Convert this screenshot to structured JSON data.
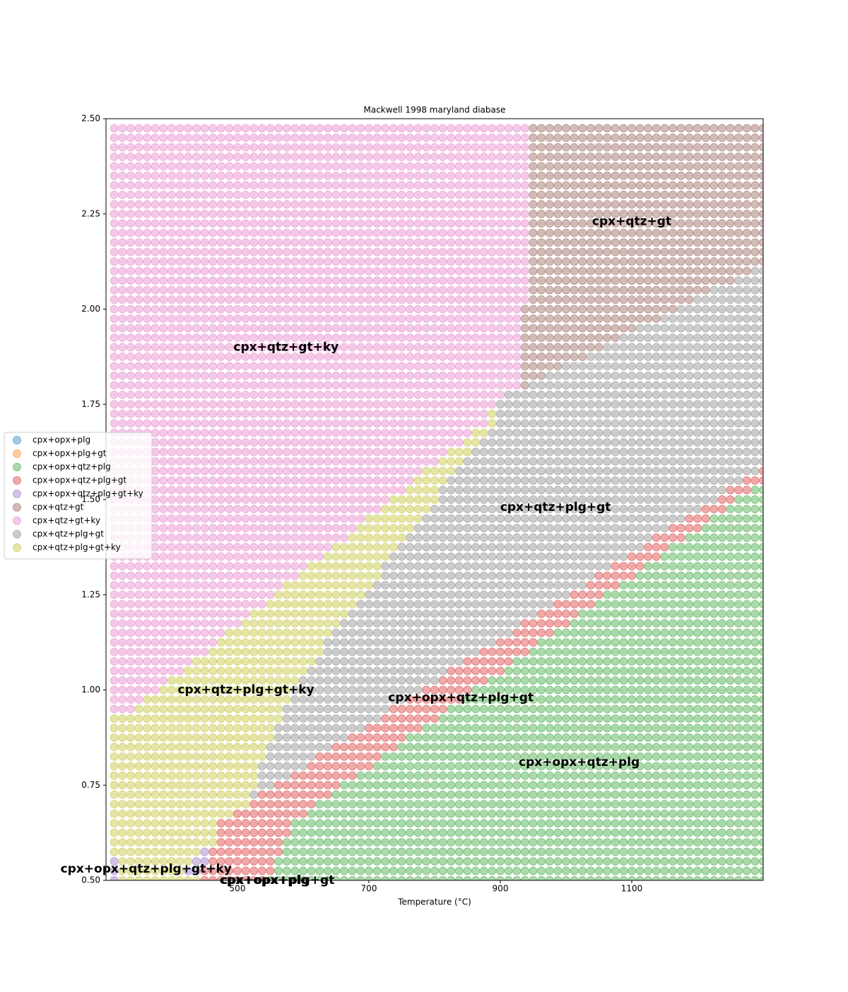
{
  "chart_data": {
    "type": "scatter",
    "title": "Mackwell 1998 maryland diabase",
    "xlabel": "Temperature (°C)",
    "xlim": [
      300,
      1300
    ],
    "ylim": [
      0.5,
      2.5
    ],
    "xticks": [
      500,
      700,
      900,
      1100
    ],
    "yticks": [
      {
        "value": 0.5,
        "label": "0.50"
      },
      {
        "value": 0.75,
        "label": "0.75"
      },
      {
        "value": 1,
        "label": "1.00"
      },
      {
        "value": 1.25,
        "label": "1.25"
      },
      {
        "value": 1.5,
        "label": "1.50"
      },
      {
        "value": 1.75,
        "label": "1.75"
      },
      {
        "value": 2,
        "label": "2.00"
      },
      {
        "value": 2.25,
        "label": "2.25"
      },
      {
        "value": 2.5,
        "label": "2.50"
      }
    ],
    "grid": false,
    "legend": "left",
    "series": [
      {
        "name": "cpx+opx+plg",
        "color": "#1f77b4"
      },
      {
        "name": "cpx+opx+plg+gt",
        "color": "#ff7f0e"
      },
      {
        "name": "cpx+opx+qtz+plg",
        "color": "#2ca02c"
      },
      {
        "name": "cpx+opx+qtz+plg+gt",
        "color": "#d62728"
      },
      {
        "name": "cpx+opx+qtz+plg+gt+ky",
        "color": "#9467bd"
      },
      {
        "name": "cpx+qtz+gt",
        "color": "#8c564b"
      },
      {
        "name": "cpx+qtz+gt+ky",
        "color": "#e377c2"
      },
      {
        "name": "cpx+qtz+plg+gt",
        "color": "#7f7f7f"
      },
      {
        "name": "cpx+qtz+plg+gt+ky",
        "color": "#bcbd22"
      }
    ],
    "x": [
      312.5,
      325,
      337.5,
      350,
      362.5,
      375,
      387.5,
      400,
      412.5,
      425,
      437.5,
      450,
      462.5,
      475,
      487.5,
      500,
      512.5,
      525,
      537.5,
      550,
      562.5,
      575,
      587.5,
      600,
      612.5,
      625,
      637.5,
      650,
      662.5,
      675,
      687.5,
      700,
      712.5,
      725,
      737.5,
      750,
      762.5,
      775,
      787.5,
      800,
      812.5,
      825,
      837.5,
      850,
      862.5,
      875,
      887.5,
      900,
      912.5,
      925,
      937.5,
      950,
      962.5,
      975,
      987.5,
      1000,
      1012.5,
      1025,
      1037.5,
      1050,
      1062.5,
      1075,
      1087.5,
      1100,
      1112.5,
      1125,
      1137.5,
      1150,
      1162.5,
      1175,
      1187.5,
      1200,
      1212.5,
      1225,
      1237.5,
      1250,
      1262.5,
      1275,
      1287.5,
      1300
    ],
    "y": [
      0.5,
      0.525,
      0.55,
      0.575,
      0.6,
      0.625,
      0.65,
      0.675,
      0.7,
      0.725,
      0.75,
      0.775,
      0.8,
      0.825,
      0.85,
      0.875,
      0.9,
      0.925,
      0.95,
      0.975,
      1,
      1.025,
      1.05,
      1.075,
      1.1,
      1.125,
      1.15,
      1.175,
      1.2,
      1.225,
      1.25,
      1.275,
      1.3,
      1.325,
      1.35,
      1.375,
      1.4,
      1.425,
      1.45,
      1.475,
      1.5,
      1.525,
      1.55,
      1.575,
      1.6,
      1.625,
      1.65,
      1.675,
      1.7,
      1.725,
      1.75,
      1.775,
      1.8,
      1.825,
      1.85,
      1.875,
      1.9,
      1.925,
      1.95,
      1.975,
      2,
      2.025,
      2.05,
      2.075,
      2.1,
      2.125,
      2.15,
      2.175,
      2.2,
      2.225,
      2.25,
      2.275,
      2.3,
      2.325,
      2.35,
      2.375,
      2.4,
      2.425,
      2.45,
      2.475
    ],
    "grid_runs": [
      [
        [
          4,
          1
        ],
        [
          8,
          10
        ],
        [
          3,
          8
        ],
        [
          2,
          61
        ]
      ],
      [
        [
          4,
          1
        ],
        [
          8,
          8
        ],
        [
          4,
          2
        ],
        [
          3,
          9
        ],
        [
          2,
          60
        ]
      ],
      [
        [
          4,
          1
        ],
        [
          8,
          9
        ],
        [
          4,
          2
        ],
        [
          3,
          8
        ],
        [
          2,
          60
        ]
      ],
      [
        [
          8,
          11
        ],
        [
          4,
          1
        ],
        [
          3,
          9
        ],
        [
          2,
          59
        ]
      ],
      [
        [
          8,
          13
        ],
        [
          3,
          8
        ],
        [
          2,
          59
        ]
      ],
      [
        [
          8,
          13
        ],
        [
          3,
          9
        ],
        [
          2,
          58
        ]
      ],
      [
        [
          8,
          13
        ],
        [
          3,
          9
        ],
        [
          2,
          58
        ]
      ],
      [
        [
          8,
          15
        ],
        [
          3,
          9
        ],
        [
          2,
          56
        ]
      ],
      [
        [
          8,
          17
        ],
        [
          3,
          8
        ],
        [
          2,
          55
        ]
      ],
      [
        [
          8,
          17
        ],
        [
          7,
          1
        ],
        [
          3,
          9
        ],
        [
          2,
          53
        ]
      ],
      [
        [
          8,
          18
        ],
        [
          7,
          2
        ],
        [
          3,
          8
        ],
        [
          2,
          52
        ]
      ],
      [
        [
          8,
          18
        ],
        [
          7,
          4
        ],
        [
          3,
          8
        ],
        [
          2,
          50
        ]
      ],
      [
        [
          8,
          18
        ],
        [
          7,
          6
        ],
        [
          3,
          8
        ],
        [
          2,
          48
        ]
      ],
      [
        [
          8,
          19
        ],
        [
          7,
          6
        ],
        [
          3,
          8
        ],
        [
          2,
          47
        ]
      ],
      [
        [
          8,
          19
        ],
        [
          7,
          8
        ],
        [
          3,
          8
        ],
        [
          2,
          45
        ]
      ],
      [
        [
          8,
          20
        ],
        [
          7,
          9
        ],
        [
          3,
          7
        ],
        [
          2,
          44
        ]
      ],
      [
        [
          8,
          20
        ],
        [
          7,
          11
        ],
        [
          3,
          7
        ],
        [
          2,
          42
        ]
      ],
      [
        [
          8,
          21
        ],
        [
          7,
          12
        ],
        [
          3,
          7
        ],
        [
          2,
          40
        ]
      ],
      [
        [
          6,
          3
        ],
        [
          8,
          18
        ],
        [
          7,
          13
        ],
        [
          3,
          7
        ],
        [
          2,
          39
        ]
      ],
      [
        [
          6,
          4
        ],
        [
          8,
          18
        ],
        [
          7,
          14
        ],
        [
          3,
          7
        ],
        [
          2,
          37
        ]
      ],
      [
        [
          6,
          6
        ],
        [
          8,
          16
        ],
        [
          7,
          16
        ],
        [
          3,
          6
        ],
        [
          2,
          36
        ]
      ],
      [
        [
          6,
          7
        ],
        [
          8,
          16
        ],
        [
          7,
          17
        ],
        [
          3,
          6
        ],
        [
          2,
          34
        ]
      ],
      [
        [
          6,
          9
        ],
        [
          8,
          15
        ],
        [
          7,
          17
        ],
        [
          3,
          7
        ],
        [
          2,
          32
        ]
      ],
      [
        [
          6,
          10
        ],
        [
          8,
          15
        ],
        [
          7,
          18
        ],
        [
          3,
          6
        ],
        [
          2,
          31
        ]
      ],
      [
        [
          6,
          12
        ],
        [
          8,
          14
        ],
        [
          7,
          19
        ],
        [
          3,
          6
        ],
        [
          2,
          29
        ]
      ],
      [
        [
          6,
          13
        ],
        [
          8,
          13
        ],
        [
          7,
          21
        ],
        [
          3,
          5
        ],
        [
          2,
          28
        ]
      ],
      [
        [
          6,
          14
        ],
        [
          8,
          13
        ],
        [
          7,
          22
        ],
        [
          3,
          5
        ],
        [
          2,
          26
        ]
      ],
      [
        [
          6,
          16
        ],
        [
          8,
          12
        ],
        [
          7,
          22
        ],
        [
          3,
          6
        ],
        [
          2,
          24
        ]
      ],
      [
        [
          6,
          17
        ],
        [
          8,
          12
        ],
        [
          7,
          23
        ],
        [
          3,
          5
        ],
        [
          2,
          23
        ]
      ],
      [
        [
          6,
          19
        ],
        [
          8,
          11
        ],
        [
          7,
          24
        ],
        [
          3,
          5
        ],
        [
          2,
          21
        ]
      ],
      [
        [
          6,
          20
        ],
        [
          8,
          11
        ],
        [
          7,
          25
        ],
        [
          3,
          4
        ],
        [
          2,
          20
        ]
      ],
      [
        [
          6,
          21
        ],
        [
          8,
          11
        ],
        [
          7,
          26
        ],
        [
          3,
          4
        ],
        [
          2,
          18
        ]
      ],
      [
        [
          6,
          23
        ],
        [
          8,
          10
        ],
        [
          7,
          26
        ],
        [
          3,
          5
        ],
        [
          2,
          16
        ]
      ],
      [
        [
          6,
          24
        ],
        [
          8,
          9
        ],
        [
          7,
          28
        ],
        [
          3,
          4
        ],
        [
          2,
          15
        ]
      ],
      [
        [
          6,
          26
        ],
        [
          8,
          8
        ],
        [
          7,
          29
        ],
        [
          3,
          4
        ],
        [
          2,
          13
        ]
      ],
      [
        [
          6,
          27
        ],
        [
          8,
          8
        ],
        [
          7,
          30
        ],
        [
          3,
          3
        ],
        [
          2,
          12
        ]
      ],
      [
        [
          6,
          29
        ],
        [
          8,
          7
        ],
        [
          7,
          30
        ],
        [
          3,
          4
        ],
        [
          2,
          10
        ]
      ],
      [
        [
          6,
          30
        ],
        [
          8,
          7
        ],
        [
          7,
          31
        ],
        [
          3,
          4
        ],
        [
          2,
          8
        ]
      ],
      [
        [
          6,
          31
        ],
        [
          8,
          7
        ],
        [
          7,
          32
        ],
        [
          3,
          3
        ],
        [
          2,
          7
        ]
      ],
      [
        [
          6,
          33
        ],
        [
          8,
          6
        ],
        [
          7,
          33
        ],
        [
          3,
          3
        ],
        [
          2,
          5
        ]
      ],
      [
        [
          6,
          34
        ],
        [
          8,
          6
        ],
        [
          7,
          34
        ],
        [
          3,
          2
        ],
        [
          2,
          4
        ]
      ],
      [
        [
          6,
          36
        ],
        [
          8,
          4
        ],
        [
          7,
          35
        ],
        [
          3,
          3
        ],
        [
          2,
          2
        ]
      ],
      [
        [
          6,
          37
        ],
        [
          8,
          4
        ],
        [
          7,
          36
        ],
        [
          3,
          3
        ]
      ],
      [
        [
          6,
          38
        ],
        [
          8,
          4
        ],
        [
          7,
          37
        ],
        [
          3,
          1
        ]
      ],
      [
        [
          6,
          40
        ],
        [
          8,
          3
        ],
        [
          7,
          37
        ]
      ],
      [
        [
          6,
          41
        ],
        [
          8,
          3
        ],
        [
          7,
          36
        ]
      ],
      [
        [
          6,
          43
        ],
        [
          8,
          2
        ],
        [
          7,
          35
        ]
      ],
      [
        [
          6,
          44
        ],
        [
          8,
          2
        ],
        [
          7,
          34
        ]
      ],
      [
        [
          6,
          46
        ],
        [
          8,
          1
        ],
        [
          7,
          33
        ]
      ],
      [
        [
          6,
          46
        ],
        [
          8,
          1
        ],
        [
          7,
          33
        ]
      ],
      [
        [
          6,
          47
        ],
        [
          7,
          33
        ]
      ],
      [
        [
          6,
          48
        ],
        [
          7,
          32
        ]
      ],
      [
        [
          6,
          50
        ],
        [
          5,
          1
        ],
        [
          7,
          29
        ]
      ],
      [
        [
          6,
          50
        ],
        [
          5,
          3
        ],
        [
          7,
          27
        ]
      ],
      [
        [
          6,
          50
        ],
        [
          5,
          5
        ],
        [
          7,
          25
        ]
      ],
      [
        [
          6,
          50
        ],
        [
          5,
          8
        ],
        [
          7,
          22
        ]
      ],
      [
        [
          6,
          50
        ],
        [
          5,
          10
        ],
        [
          7,
          20
        ]
      ],
      [
        [
          6,
          50
        ],
        [
          5,
          12
        ],
        [
          7,
          18
        ]
      ],
      [
        [
          6,
          50
        ],
        [
          5,
          14
        ],
        [
          7,
          16
        ]
      ],
      [
        [
          6,
          50
        ],
        [
          5,
          17
        ],
        [
          7,
          13
        ]
      ],
      [
        [
          6,
          50
        ],
        [
          5,
          19
        ],
        [
          7,
          11
        ]
      ],
      [
        [
          6,
          51
        ],
        [
          5,
          20
        ],
        [
          7,
          9
        ]
      ],
      [
        [
          6,
          51
        ],
        [
          5,
          22
        ],
        [
          7,
          7
        ]
      ],
      [
        [
          6,
          51
        ],
        [
          5,
          25
        ],
        [
          7,
          4
        ]
      ],
      [
        [
          6,
          51
        ],
        [
          5,
          27
        ],
        [
          7,
          2
        ]
      ],
      [
        [
          6,
          51
        ],
        [
          5,
          29
        ]
      ],
      [
        [
          6,
          51
        ],
        [
          5,
          29
        ]
      ],
      [
        [
          6,
          51
        ],
        [
          5,
          29
        ]
      ],
      [
        [
          6,
          51
        ],
        [
          5,
          29
        ]
      ],
      [
        [
          6,
          51
        ],
        [
          5,
          29
        ]
      ],
      [
        [
          6,
          51
        ],
        [
          5,
          29
        ]
      ],
      [
        [
          6,
          51
        ],
        [
          5,
          29
        ]
      ],
      [
        [
          6,
          51
        ],
        [
          5,
          29
        ]
      ],
      [
        [
          6,
          51
        ],
        [
          5,
          29
        ]
      ],
      [
        [
          6,
          51
        ],
        [
          5,
          29
        ]
      ],
      [
        [
          6,
          51
        ],
        [
          5,
          29
        ]
      ],
      [
        [
          6,
          51
        ],
        [
          5,
          29
        ]
      ],
      [
        [
          6,
          51
        ],
        [
          5,
          29
        ]
      ],
      [
        [
          6,
          51
        ],
        [
          5,
          29
        ]
      ],
      [
        [
          6,
          51
        ],
        [
          5,
          29
        ]
      ]
    ],
    "annotations": [
      {
        "text": "cpx+qtz+gt",
        "x": 1100,
        "y": 2.23
      },
      {
        "text": "cpx+qtz+gt+ky",
        "x": 574,
        "y": 1.9
      },
      {
        "text": "cpx+qtz+plg+gt",
        "x": 984,
        "y": 1.48
      },
      {
        "text": "cpx+qtz+plg+gt+ky",
        "x": 513,
        "y": 1.0
      },
      {
        "text": "cpx+opx+qtz+plg+gt",
        "x": 840,
        "y": 0.98
      },
      {
        "text": "cpx+opx+qtz+plg",
        "x": 1020,
        "y": 0.81
      },
      {
        "text": "cpx+opx+qtz+plg+gt+ky",
        "x": 361,
        "y": 0.53
      },
      {
        "text": "cpx+opx+plg",
        "x": 541,
        "y": 0.5
      },
      {
        "text": "cpx+opx+plg+gt",
        "x": 561,
        "y": 0.5
      }
    ]
  }
}
